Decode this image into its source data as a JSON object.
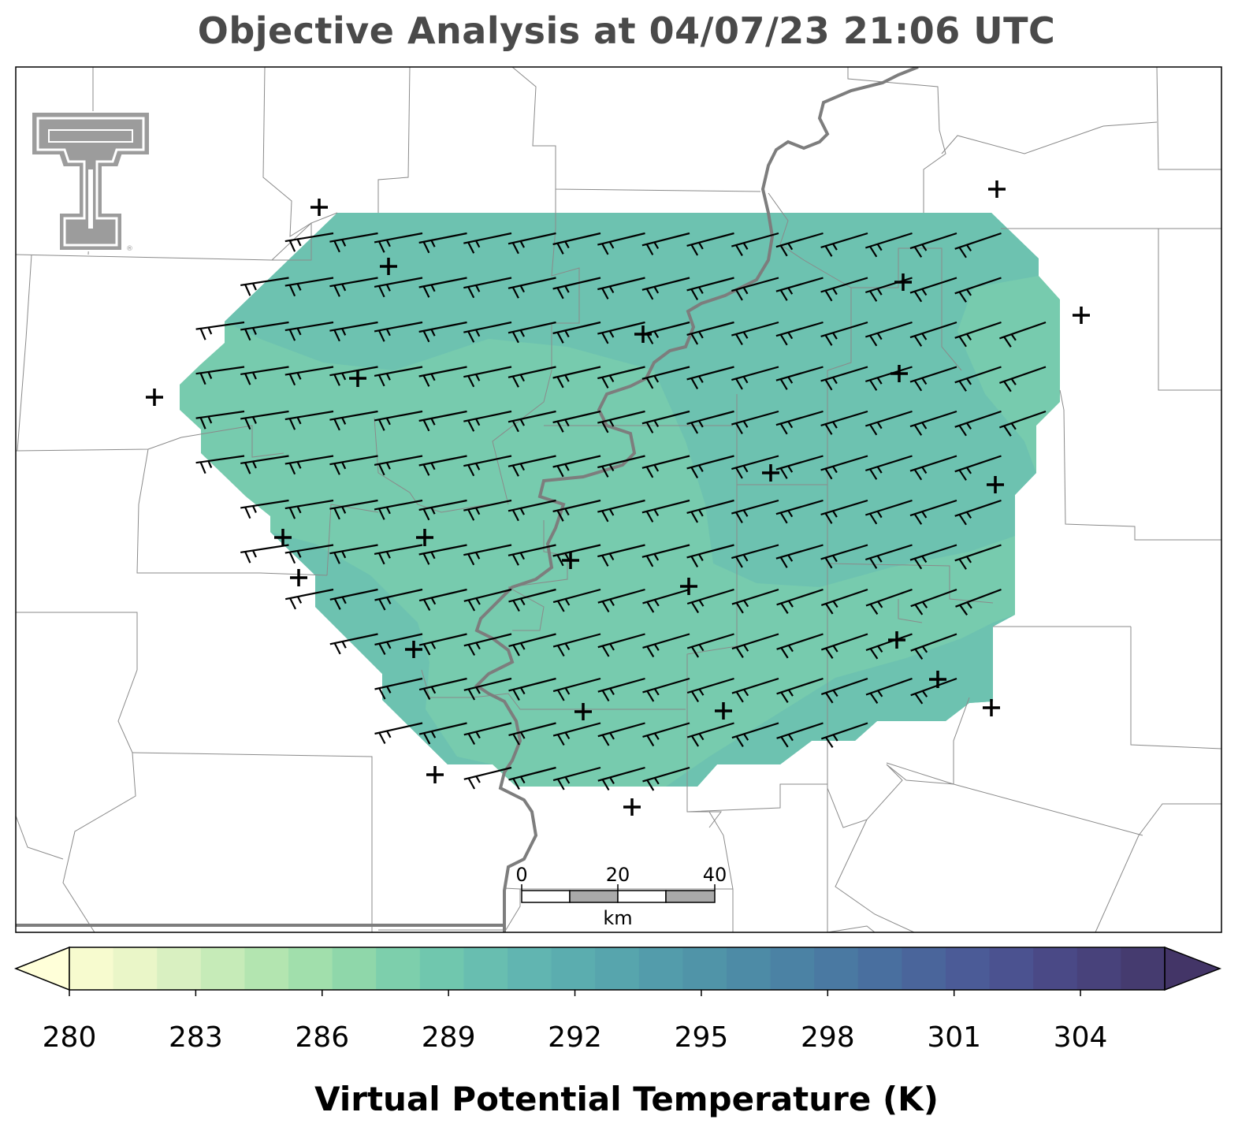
{
  "title": "Objective Analysis at 04/07/23 21:06 UTC",
  "colorbar": {
    "label": "Virtual Potential Temperature (K)",
    "ticks": [
      280,
      283,
      286,
      289,
      292,
      295,
      298,
      301,
      304
    ],
    "min": 280,
    "max": 306,
    "colors": [
      "#f7fbcf",
      "#eaf6c8",
      "#d9f0c1",
      "#c6ebb8",
      "#b3e5b0",
      "#a1dfac",
      "#8fd7aa",
      "#7dcfac",
      "#70c7ae",
      "#68beb0",
      "#61b5b1",
      "#5badaf",
      "#57a5ad",
      "#539cab",
      "#5094a8",
      "#4d8ba6",
      "#4b82a4",
      "#4a79a2",
      "#496f9f",
      "#4a659b",
      "#4b5b97",
      "#4b5290",
      "#4a4986",
      "#48427b",
      "#453b6f"
    ],
    "under_color": "#ffffd9",
    "over_color": "#433567"
  },
  "scale_bar": {
    "labels": [
      "0",
      "20",
      "40"
    ],
    "unit": "km"
  },
  "logo": {
    "name": "texas-tech-double-t-logo",
    "text": "TT",
    "mark": "®"
  },
  "colors": {
    "river": "#7d7d7d",
    "county": "#8a8a8a",
    "station": "#000000"
  }
}
